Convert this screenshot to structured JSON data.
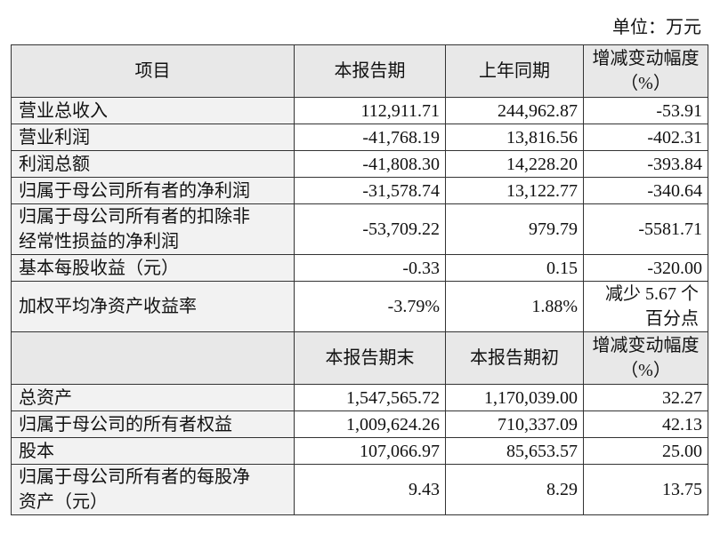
{
  "unit": "单位：万元",
  "table": {
    "header": [
      "项目",
      "本报告期",
      "上年同期",
      "增减变动幅度（%）"
    ],
    "rows": [
      [
        "营业总收入",
        "112,911.71",
        "244,962.87",
        "-53.91"
      ],
      [
        "营业利润",
        "-41,768.19",
        "13,816.56",
        "-402.31"
      ],
      [
        "利润总额",
        "-41,808.30",
        "14,228.20",
        "-393.84"
      ],
      [
        "归属于母公司所有者的净利润",
        "-31,578.74",
        "13,122.77",
        "-340.64"
      ],
      [
        "归属于母公司所有者的扣除非经常性损益的净利润",
        "-53,709.22",
        "979.79",
        "-5581.71"
      ],
      [
        "基本每股收益（元）",
        "-0.33",
        "0.15",
        "-320.00"
      ],
      [
        "加权平均净资产收益率",
        "-3.79%",
        "1.88%",
        "减少 5.67 个百分点"
      ]
    ],
    "header2": [
      "本报告期末",
      "本报告期初",
      "增减变动幅度（%）"
    ],
    "rows2": [
      [
        "总资产",
        "1,547,565.72",
        "1,170,039.00",
        "32.27"
      ],
      [
        "归属于母公司的所有者权益",
        "1,009,624.26",
        "710,337.09",
        "42.13"
      ],
      [
        "股本",
        "107,066.97",
        "85,653.57",
        "25.00"
      ],
      [
        "归属于母公司所有者的每股净资产（元）",
        "9.43",
        "8.29",
        "13.75"
      ]
    ]
  }
}
